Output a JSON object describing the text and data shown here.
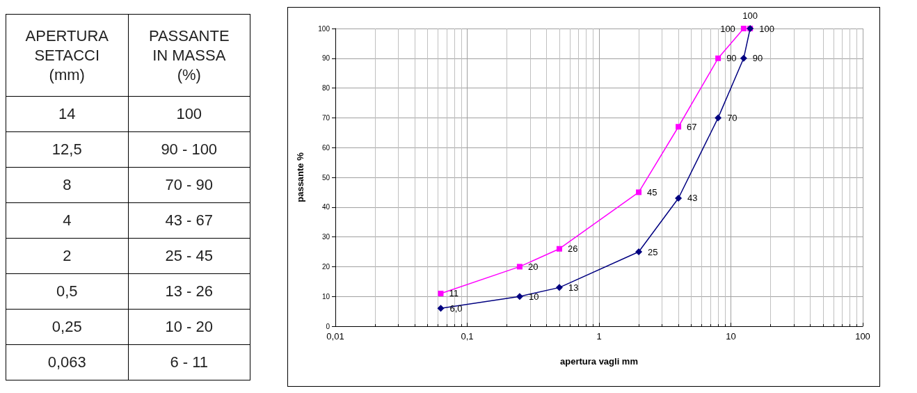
{
  "chart_data": [
    {
      "type": "other",
      "categories": [
        "APERTURA\nSETACCI\n(mm)",
        "PASSANTE\nIN MASSA\n(%)"
      ],
      "cell_labels": [
        [
          "14",
          "100"
        ],
        [
          "12,5",
          "90 - 100"
        ],
        [
          "8",
          "70 - 90"
        ],
        [
          "4",
          "43 - 67"
        ],
        [
          "2",
          "25 - 45"
        ],
        [
          "0,5",
          "13 - 26"
        ],
        [
          "0,25",
          "10 - 20"
        ],
        [
          "0,063",
          "6 - 11"
        ]
      ]
    },
    {
      "type": "line",
      "xlabel": "apertura vagli mm",
      "ylabel": "passante %",
      "log": "x",
      "grid": true,
      "xlim": [
        0.01,
        100
      ],
      "xticks": [
        {
          "value": 0.01,
          "label": "0,01"
        },
        {
          "value": 0.1,
          "label": "0,1"
        },
        1,
        10,
        100
      ],
      "ylim": [
        0,
        100
      ],
      "yticks": [
        0,
        10,
        20,
        30,
        40,
        50,
        60,
        70,
        80,
        90,
        100
      ],
      "series": [
        {
          "color": "#ff00ff",
          "marker": "square",
          "x": [
            0.063,
            0.25,
            0.5,
            2,
            4,
            8,
            12.5,
            14
          ],
          "values": [
            11,
            20,
            26,
            45,
            67,
            90,
            100,
            100
          ],
          "value_labels": [
            "11",
            "20",
            "26",
            "45",
            "67",
            "90",
            "100",
            "100"
          ]
        },
        {
          "color": "#000080",
          "marker": "diamond",
          "x": [
            0.063,
            0.25,
            0.5,
            2,
            4,
            8,
            12.5,
            14
          ],
          "values": [
            6,
            10,
            13,
            25,
            43,
            70,
            90,
            100
          ],
          "value_labels": [
            "6,0",
            "10",
            "13",
            "25",
            "43",
            "70",
            "90",
            "100"
          ]
        }
      ]
    }
  ]
}
